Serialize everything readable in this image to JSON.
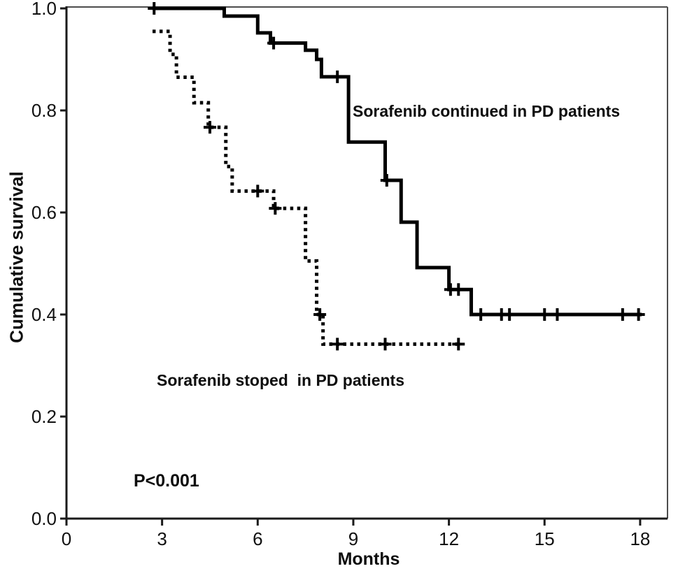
{
  "figure_type": "kaplan-meier-survival-plot",
  "colors": {
    "curve": "#000000",
    "axis": "#1a1a1a",
    "frame": "#4d4d4d",
    "text": "#0d0d0d",
    "background": "#ffffff"
  },
  "chart_data": {
    "type": "line",
    "subtype": "kaplan-meier-step",
    "title": "",
    "xlabel": "Months",
    "ylabel": "Cumulative survival",
    "xlim": [
      0,
      18.9
    ],
    "ylim": [
      0.0,
      1.0
    ],
    "grid": false,
    "legend_position": "none",
    "x_ticks": [
      0,
      3,
      6,
      9,
      12,
      15,
      18
    ],
    "x_tick_labels": [
      "0",
      "3",
      "6",
      "9",
      "12",
      "15",
      "18"
    ],
    "y_ticks": [
      0.0,
      0.2,
      0.4,
      0.6,
      0.8,
      1.0
    ],
    "y_tick_labels": [
      "0.0",
      "0.2",
      "0.4",
      "0.6",
      "0.8",
      "1.0"
    ],
    "series": [
      {
        "name": "Sorafenib continued in PD patients",
        "line_style": "solid",
        "color": "#000000",
        "steps": [
          [
            2.7,
            1.0
          ],
          [
            4.95,
            0.985
          ],
          [
            6.0,
            0.952
          ],
          [
            6.4,
            0.932
          ],
          [
            7.5,
            0.918
          ],
          [
            7.85,
            0.9
          ],
          [
            8.0,
            0.866
          ],
          [
            8.85,
            0.738
          ],
          [
            10.0,
            0.663
          ],
          [
            10.5,
            0.581
          ],
          [
            11.0,
            0.492
          ],
          [
            12.0,
            0.449
          ],
          [
            12.7,
            0.4
          ]
        ],
        "end_x": 18.05,
        "censor_marks": [
          [
            2.75,
            1.0
          ],
          [
            6.5,
            0.932
          ],
          [
            8.5,
            0.866
          ],
          [
            10.05,
            0.663
          ],
          [
            12.05,
            0.449
          ],
          [
            12.3,
            0.449
          ],
          [
            13.0,
            0.4
          ],
          [
            13.65,
            0.4
          ],
          [
            13.9,
            0.4
          ],
          [
            15.0,
            0.4
          ],
          [
            15.4,
            0.4
          ],
          [
            17.45,
            0.4
          ],
          [
            17.95,
            0.4
          ]
        ]
      },
      {
        "name": "Sorafenib stoped  in PD patients",
        "line_style": "dotted",
        "color": "#000000",
        "steps": [
          [
            2.7,
            0.955
          ],
          [
            3.25,
            0.91
          ],
          [
            3.45,
            0.865
          ],
          [
            4.0,
            0.815
          ],
          [
            4.45,
            0.767
          ],
          [
            5.0,
            0.69
          ],
          [
            5.2,
            0.642
          ],
          [
            6.5,
            0.608
          ],
          [
            7.5,
            0.505
          ],
          [
            7.85,
            0.4
          ],
          [
            8.05,
            0.342
          ]
        ],
        "end_x": 12.4,
        "censor_marks": [
          [
            4.5,
            0.767
          ],
          [
            6.0,
            0.642
          ],
          [
            6.55,
            0.608
          ],
          [
            7.95,
            0.4
          ],
          [
            8.5,
            0.342
          ],
          [
            10.0,
            0.342
          ],
          [
            12.3,
            0.342
          ]
        ]
      }
    ],
    "annotations": [
      {
        "id": "continued-label",
        "text": "Sorafenib continued in PD patients"
      },
      {
        "id": "stopped-label",
        "text": "Sorafenib stoped  in PD patients"
      },
      {
        "id": "p-value",
        "text": "P<0.001"
      }
    ]
  }
}
